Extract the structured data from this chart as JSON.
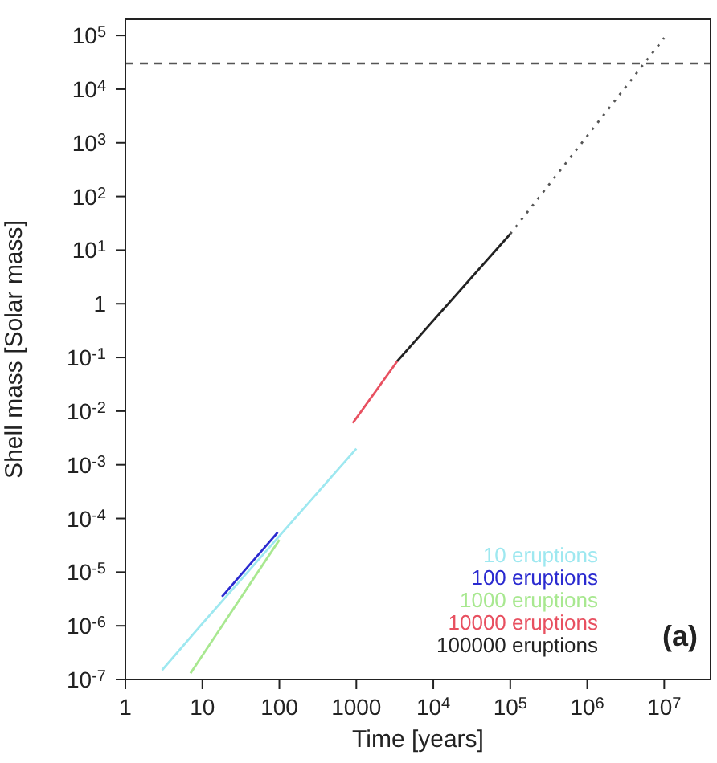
{
  "chart_data": {
    "type": "line",
    "xlabel": "Time [years]",
    "ylabel": "Shell mass [Solar mass]",
    "log": "xy",
    "legend": "bottom right",
    "marker": "none",
    "xlim": [
      1,
      40000000
    ],
    "ylim": [
      1e-07,
      200000
    ],
    "xticks": [
      1,
      10,
      100,
      1000,
      {
        "value": 10000,
        "label": "10$^{4}$"
      },
      {
        "value": 100000,
        "label": "10$^{5}$"
      },
      {
        "value": 1000000,
        "label": "10$^{6}$"
      },
      {
        "value": 10000000,
        "label": "10$^{7}$"
      }
    ],
    "yticks": [
      {
        "value": 1e-07,
        "label": "10$^{-7}$"
      },
      {
        "value": 1e-06,
        "label": "10$^{-6}$"
      },
      {
        "value": 1e-05,
        "label": "10$^{-5}$"
      },
      {
        "value": 0.0001,
        "label": "10$^{-4}$"
      },
      {
        "value": 0.001,
        "label": "10$^{-3}$"
      },
      {
        "value": 0.01,
        "label": "10$^{-2}$"
      },
      {
        "value": 0.1,
        "label": "10$^{-1}$"
      },
      1,
      {
        "value": 10,
        "label": "10$^{1}$"
      },
      {
        "value": 100,
        "label": "10$^{2}$"
      },
      {
        "value": 1000,
        "label": "10$^{3}$"
      },
      {
        "value": 10000,
        "label": "10$^{4}$"
      },
      {
        "value": 100000,
        "label": "10$^{5}$"
      }
    ],
    "series": [
      {
        "name": "10 eruptions",
        "color": "#9ee8f0",
        "x": [
          3,
          10,
          100,
          1000
        ],
        "values": [
          1.5e-07,
          1.1e-06,
          4.7e-05,
          0.002
        ]
      },
      {
        "name": "100 eruptions",
        "color": "#2a2ad0",
        "x": [
          18,
          95
        ],
        "values": [
          3.5e-06,
          5.5e-05
        ]
      },
      {
        "name": "1000 eruptions",
        "color": "#a8e890",
        "x": [
          7,
          100
        ],
        "values": [
          1.3e-07,
          4e-05
        ]
      },
      {
        "name": "10000 eruptions",
        "color": "#e85060",
        "x": [
          900,
          3400
        ],
        "values": [
          0.006,
          0.085
        ]
      },
      {
        "name": "100000 eruptions",
        "color": "#222222",
        "x": [
          3400,
          100000
        ],
        "values": [
          0.085,
          20
        ]
      },
      {
        "color": "#555555",
        "line_style": "dotted",
        "x": [
          100000,
          10000000
        ],
        "values": [
          20,
          90000
        ]
      }
    ],
    "ref_lines": [
      {
        "axis": "y",
        "value": 30000,
        "color": "#555555",
        "line_style": "dashed"
      }
    ],
    "annotations": [
      "(a)"
    ]
  }
}
